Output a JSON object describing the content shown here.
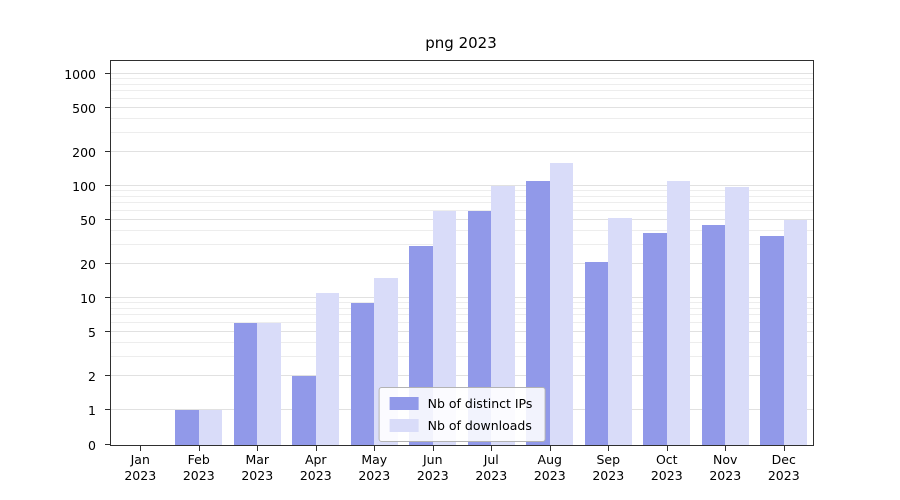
{
  "chart_data": {
    "type": "bar",
    "title": "png 2023",
    "scale": "symlog",
    "grid": true,
    "legend_position": "lower center",
    "categories": [
      "Jan",
      "Feb",
      "Mar",
      "Apr",
      "May",
      "Jun",
      "Jul",
      "Aug",
      "Sep",
      "Oct",
      "Nov",
      "Dec"
    ],
    "year_label": "2023",
    "yticks": [
      0,
      1,
      2,
      5,
      10,
      20,
      50,
      100,
      200,
      500,
      1000
    ],
    "ylim": [
      0,
      1000
    ],
    "series": [
      {
        "name": "Nb of distinct IPs",
        "color": "#9199e9",
        "values": [
          0,
          1,
          6,
          2,
          9,
          29,
          60,
          110,
          21,
          38,
          45,
          36
        ]
      },
      {
        "name": "Nb of downloads",
        "color": "#d9dcf9",
        "values": [
          0,
          1,
          6,
          11,
          15,
          60,
          100,
          160,
          52,
          110,
          97,
          50
        ]
      }
    ]
  }
}
